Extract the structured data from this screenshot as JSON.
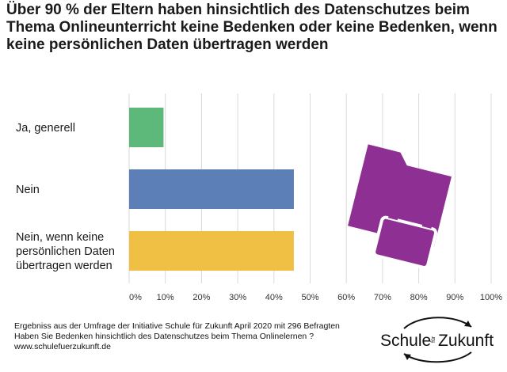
{
  "title": "Über 90 % der Eltern haben hinsichtlich des Datenschutzes beim Thema Onlineunterricht keine Bedenken oder keine Bedenken, wenn keine persönlichen Daten übertragen werden",
  "chart_data": {
    "type": "bar",
    "orientation": "horizontal",
    "categories": [
      "Ja, generell",
      "Nein",
      "Nein, wenn keine persönlichen Daten übertragen werden"
    ],
    "category_lines": [
      [
        "Ja, generell"
      ],
      [
        "Nein"
      ],
      [
        "Nein, wenn keine",
        "persönlichen Daten",
        "übertragen werden"
      ]
    ],
    "values": [
      9.5,
      45.5,
      45.5
    ],
    "colors": [
      "#5cb97a",
      "#5b7fb6",
      "#f0c045"
    ],
    "xlim": [
      0,
      100
    ],
    "ticks": [
      "0%",
      "10%",
      "20%",
      "30%",
      "40%",
      "50%",
      "60%",
      "70%",
      "80%",
      "90%",
      "100%"
    ],
    "grid": true
  },
  "icon": {
    "name": "locked-folder-icon",
    "color": "#8e2f93"
  },
  "footer": {
    "line1": "Ergebniss aus der Umfrage der Initiative Schule für Zukunft  April 2020 mit 296 Befragten",
    "line2": "Haben Sie Bedenken hinsichtlich des Datenschutzes beim Thema Onlinelernen ?",
    "line3": "www.schulefuerzukunft.de"
  },
  "logo": {
    "left": "Schule",
    "middle": "für",
    "right": "Zukunft"
  }
}
